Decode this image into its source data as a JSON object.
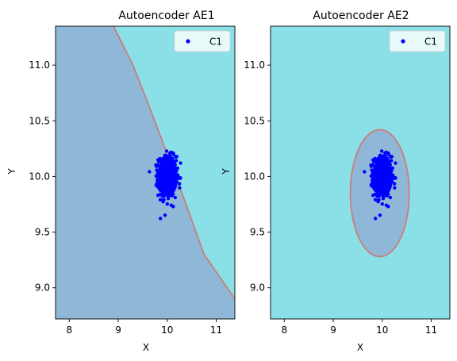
{
  "chart_data": [
    {
      "type": "scatter",
      "title": "Autoencoder AE1",
      "xlabel": "X",
      "ylabel": "Y",
      "xlim": [
        7.72,
        11.38
      ],
      "ylim": [
        8.72,
        11.35
      ],
      "xticks": [
        8,
        9,
        10,
        11
      ],
      "yticks": [
        9.0,
        9.5,
        10.0,
        10.5,
        11.0
      ],
      "xtick_labels": [
        "8",
        "9",
        "10",
        "11"
      ],
      "ytick_labels": [
        "9.0",
        "9.5",
        "10.0",
        "10.5",
        "11.0"
      ],
      "legend": {
        "placement": "top-right",
        "entries": [
          "C1"
        ]
      },
      "colors": {
        "inside_region": "#8fb8d8",
        "outside_region": "#8bdfe6",
        "boundary": "#e08080",
        "points": "#0000ff"
      },
      "decision_boundary": {
        "shape": "line",
        "points": [
          [
            8.9,
            11.35
          ],
          [
            9.3,
            11.0
          ],
          [
            9.7,
            10.55
          ],
          [
            10.3,
            9.85
          ],
          [
            10.75,
            9.3
          ],
          [
            11.38,
            8.9
          ]
        ]
      },
      "series": [
        {
          "name": "C1",
          "cluster_center": [
            10.0,
            10.0
          ],
          "std": [
            0.09,
            0.09
          ],
          "n_points": 700
        }
      ]
    },
    {
      "type": "scatter",
      "title": "Autoencoder AE2",
      "xlabel": "X",
      "ylabel": "Y",
      "xlim": [
        7.72,
        11.38
      ],
      "ylim": [
        8.72,
        11.35
      ],
      "xticks": [
        8,
        9,
        10,
        11
      ],
      "yticks": [
        9.0,
        9.5,
        10.0,
        10.5,
        11.0
      ],
      "xtick_labels": [
        "8",
        "9",
        "10",
        "11"
      ],
      "ytick_labels": [
        "9.0",
        "9.5",
        "10.0",
        "10.5",
        "11.0"
      ],
      "legend": {
        "placement": "top-right",
        "entries": [
          "C1"
        ]
      },
      "colors": {
        "inside_region": "#8fb8d8",
        "outside_region": "#8bdfe6",
        "boundary": "#e08080",
        "points": "#0000ff"
      },
      "decision_boundary": {
        "shape": "ellipse",
        "center": [
          9.95,
          9.85
        ],
        "radius": [
          0.6,
          0.57
        ]
      },
      "series": [
        {
          "name": "C1",
          "cluster_center": [
            10.0,
            10.0
          ],
          "std": [
            0.09,
            0.09
          ],
          "n_points": 700
        }
      ]
    }
  ]
}
